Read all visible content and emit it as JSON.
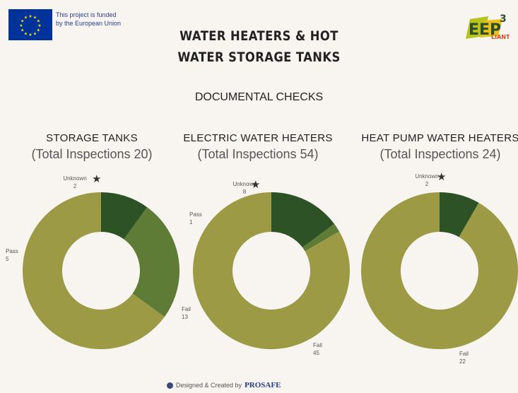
{
  "header": {
    "funding_line1": "This project is funded",
    "funding_line2": "by the European Union",
    "title_line1": "WATER HEATERS & HOT",
    "title_line2": "WATER STORAGE TANKS",
    "subtitle": "DOCUMENTAL CHECKS",
    "logo_text": "EEP",
    "logo_superscript": "3",
    "logo_small": "LIANT"
  },
  "colors": {
    "fail": "#9c9a44",
    "pass": "#5e7c35",
    "unknown": "#2c5225",
    "background": "#f8f5f1",
    "eu_blue": "#003399",
    "eu_star": "#ffdd00"
  },
  "footer": {
    "text": "Designed & Created by",
    "brand": "PROSAFE"
  },
  "chart_data": [
    {
      "type": "pie",
      "title": "STORAGE TANKS",
      "subtitle": "(Total Inspections 20)",
      "categories": [
        "Unknown",
        "Pass",
        "Fail"
      ],
      "values": [
        2,
        5,
        13
      ],
      "marker": "★"
    },
    {
      "type": "pie",
      "title": "ELECTRIC WATER HEATERS",
      "subtitle": "(Total Inspections 54)",
      "categories": [
        "Unknown",
        "Pass",
        "Fail"
      ],
      "values": [
        8,
        1,
        45
      ],
      "marker": "★"
    },
    {
      "type": "pie",
      "title": "HEAT PUMP WATER HEATERS",
      "subtitle": "(Total Inspections 24)",
      "categories": [
        "Unknown",
        "Pass",
        "Fail"
      ],
      "values": [
        2,
        0,
        22
      ],
      "marker": "★"
    }
  ]
}
